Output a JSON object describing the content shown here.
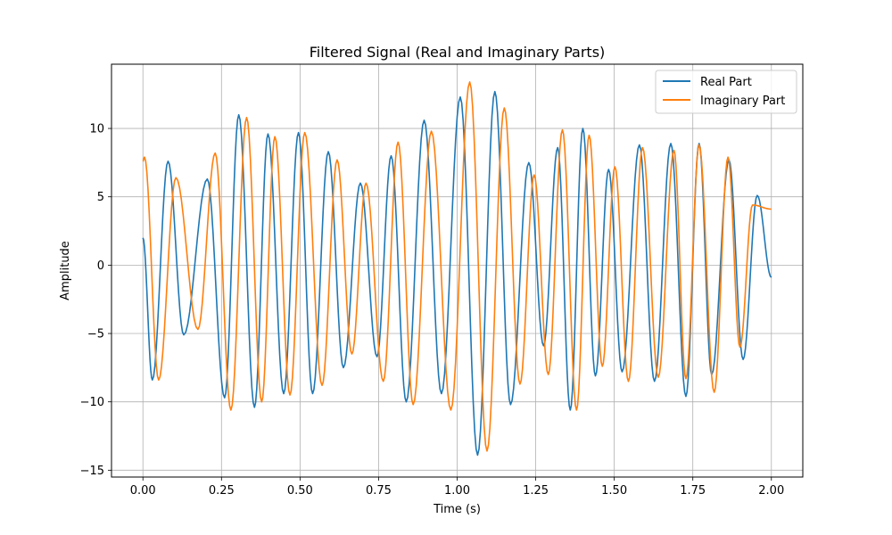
{
  "chart_data": {
    "type": "line",
    "title": "Filtered Signal (Real and Imaginary Parts)",
    "xlabel": "Time (s)",
    "ylabel": "Amplitude",
    "xlim": [
      -0.1,
      2.1
    ],
    "ylim": [
      -15.5,
      14.7
    ],
    "xticks": [
      0.0,
      0.25,
      0.5,
      0.75,
      1.0,
      1.25,
      1.5,
      1.75,
      2.0
    ],
    "xtick_labels": [
      "0.00",
      "0.25",
      "0.50",
      "0.75",
      "1.00",
      "1.25",
      "1.50",
      "1.75",
      "2.00"
    ],
    "yticks": [
      -15,
      -10,
      -5,
      0,
      5,
      10
    ],
    "ytick_labels": [
      "−15",
      "−10",
      "−5",
      "0",
      "5",
      "10"
    ],
    "grid": true,
    "legend_position": "top-right",
    "series": [
      {
        "name": "Real Part",
        "color": "#1f77b4",
        "x": [
          0.0,
          0.03,
          0.08,
          0.13,
          0.205,
          0.26,
          0.305,
          0.355,
          0.398,
          0.448,
          0.495,
          0.54,
          0.59,
          0.638,
          0.692,
          0.745,
          0.79,
          0.838,
          0.895,
          0.95,
          1.01,
          1.065,
          1.12,
          1.17,
          1.228,
          1.275,
          1.32,
          1.36,
          1.4,
          1.44,
          1.482,
          1.525,
          1.58,
          1.628,
          1.68,
          1.728,
          1.77,
          1.81,
          1.865,
          1.91,
          1.955,
          2.0
        ],
        "y": [
          2.0,
          -8.4,
          7.6,
          -5.1,
          6.3,
          -9.7,
          11.0,
          -10.4,
          9.6,
          -9.4,
          9.7,
          -9.4,
          8.3,
          -7.5,
          6.0,
          -6.7,
          8.0,
          -10.0,
          10.6,
          -9.4,
          12.3,
          -13.9,
          12.7,
          -10.2,
          7.5,
          -5.9,
          8.6,
          -10.6,
          10.0,
          -8.1,
          7.0,
          -7.8,
          8.8,
          -8.5,
          8.9,
          -9.6,
          8.9,
          -8.0,
          7.7,
          -6.9,
          5.1,
          -0.9
        ]
      },
      {
        "name": "Imaginary Part",
        "color": "#ff7f0e",
        "x": [
          0.0,
          0.005,
          0.05,
          0.105,
          0.175,
          0.23,
          0.28,
          0.33,
          0.378,
          0.42,
          0.468,
          0.515,
          0.57,
          0.618,
          0.665,
          0.71,
          0.765,
          0.812,
          0.86,
          0.918,
          0.98,
          1.04,
          1.095,
          1.15,
          1.2,
          1.245,
          1.29,
          1.335,
          1.38,
          1.42,
          1.462,
          1.502,
          1.545,
          1.59,
          1.64,
          1.69,
          1.728,
          1.77,
          1.818,
          1.862,
          1.9,
          1.94,
          2.0
        ],
        "y": [
          7.6,
          7.9,
          -8.4,
          6.4,
          -4.7,
          8.2,
          -10.6,
          10.8,
          -10.0,
          9.4,
          -9.5,
          9.7,
          -8.8,
          7.7,
          -6.5,
          6.0,
          -8.5,
          9.0,
          -10.2,
          9.8,
          -10.6,
          13.4,
          -13.6,
          11.5,
          -8.7,
          6.6,
          -8.0,
          9.9,
          -10.6,
          9.5,
          -7.4,
          7.2,
          -8.5,
          8.6,
          -8.2,
          8.4,
          -8.3,
          8.8,
          -9.3,
          7.9,
          -6.0,
          4.4,
          4.1
        ]
      }
    ]
  }
}
